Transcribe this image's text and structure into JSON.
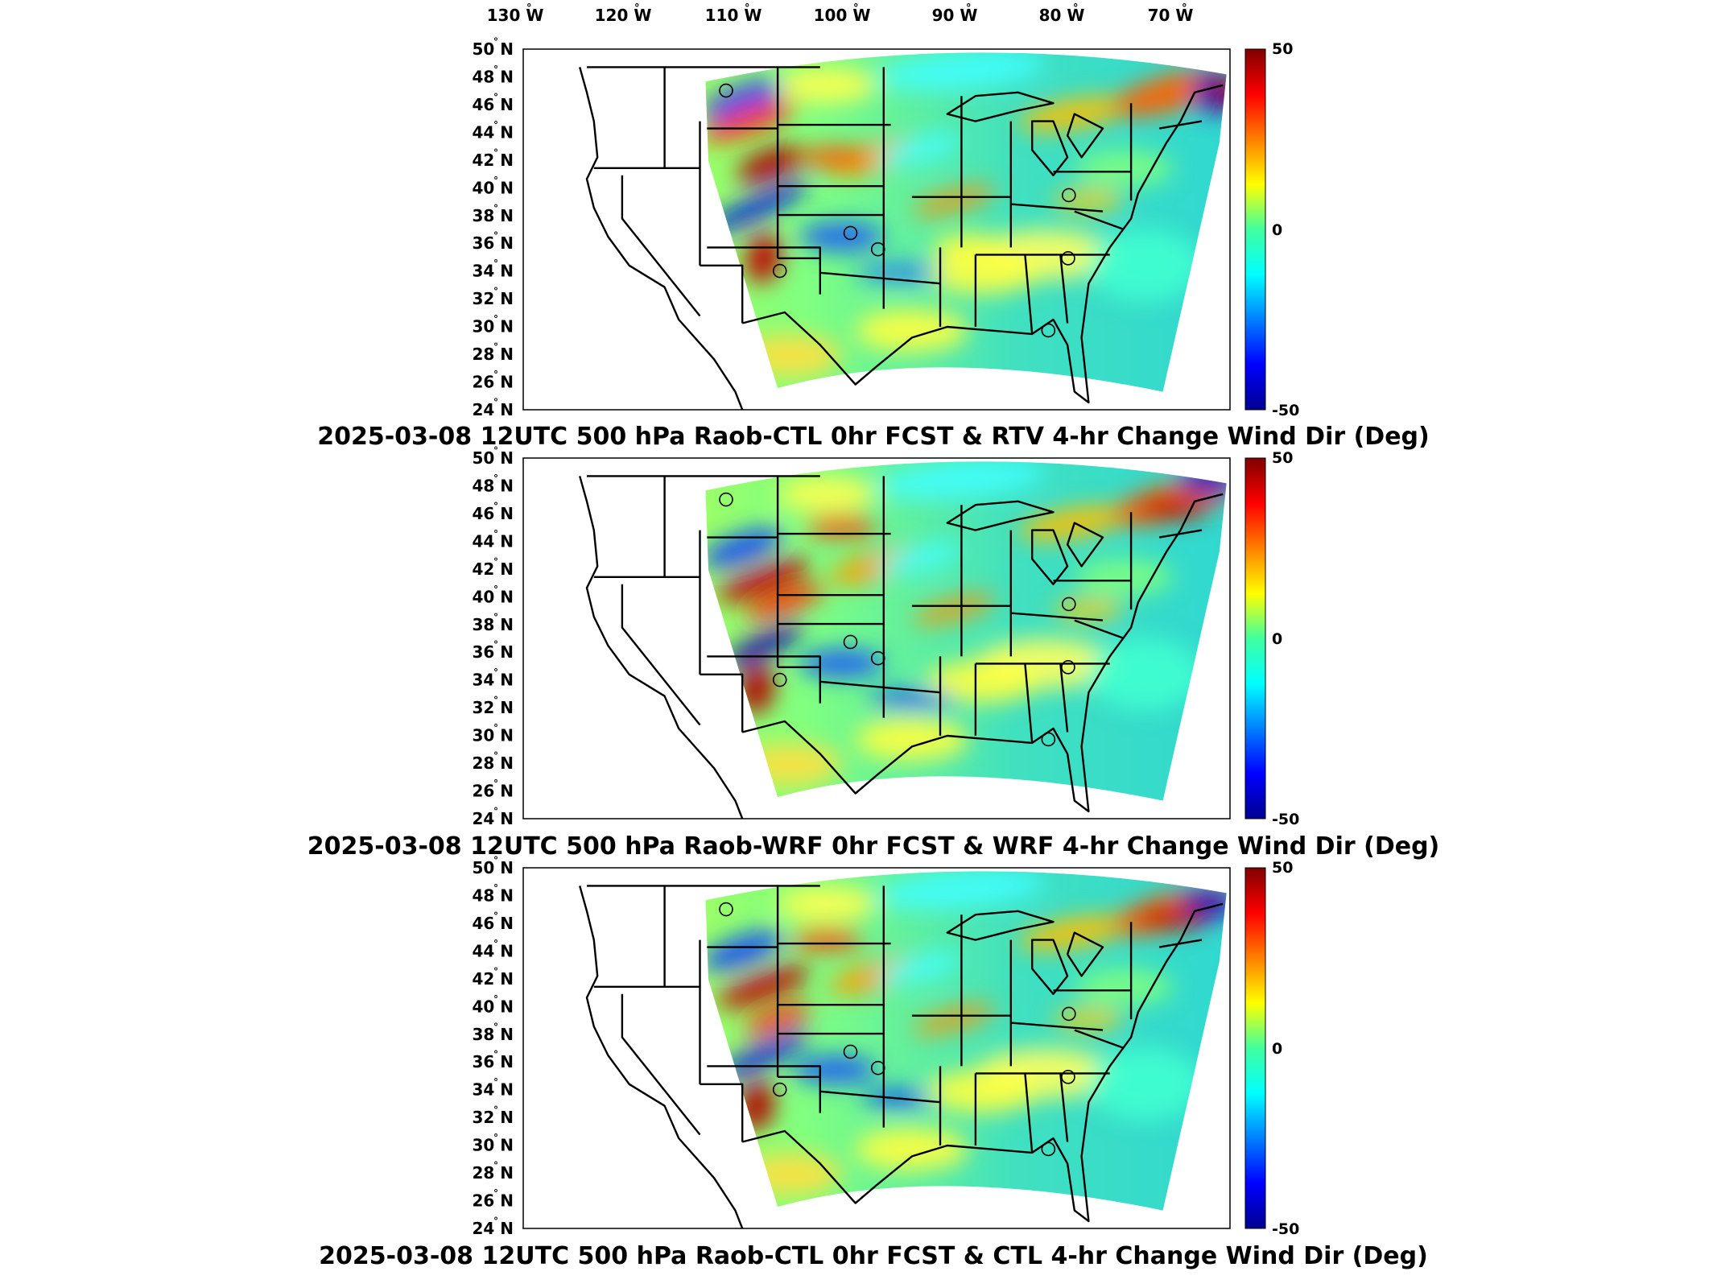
{
  "figure": {
    "lon_labels": [
      "130",
      "120",
      "110",
      "100",
      "90",
      "80",
      "70"
    ],
    "lon_suffix": "W",
    "lat_labels": [
      "50",
      "48",
      "46",
      "44",
      "42",
      "40",
      "38",
      "36",
      "34",
      "32",
      "30",
      "28",
      "26",
      "24"
    ],
    "lat_suffix": "N",
    "degree_symbol": "°",
    "colorbar": {
      "max": "50",
      "mid": "0",
      "min": "-50",
      "colormap": "jet"
    },
    "colors": {
      "ocean_and_land": "#ffffff",
      "outline": "#000000",
      "frame": "#000000"
    }
  },
  "panels": [
    {
      "title": "2025-03-08 12UTC 500 hPa Raob-CTL 0hr FCST & RTV 4-hr Change Wind Dir (Deg)"
    },
    {
      "title": "2025-03-08 12UTC 500 hPa Raob-WRF 0hr FCST & WRF 4-hr Change Wind Dir (Deg)"
    },
    {
      "title": "2025-03-08 12UTC 500 hPa Raob-CTL 0hr FCST & CTL 4-hr Change Wind Dir (Deg)"
    }
  ]
}
